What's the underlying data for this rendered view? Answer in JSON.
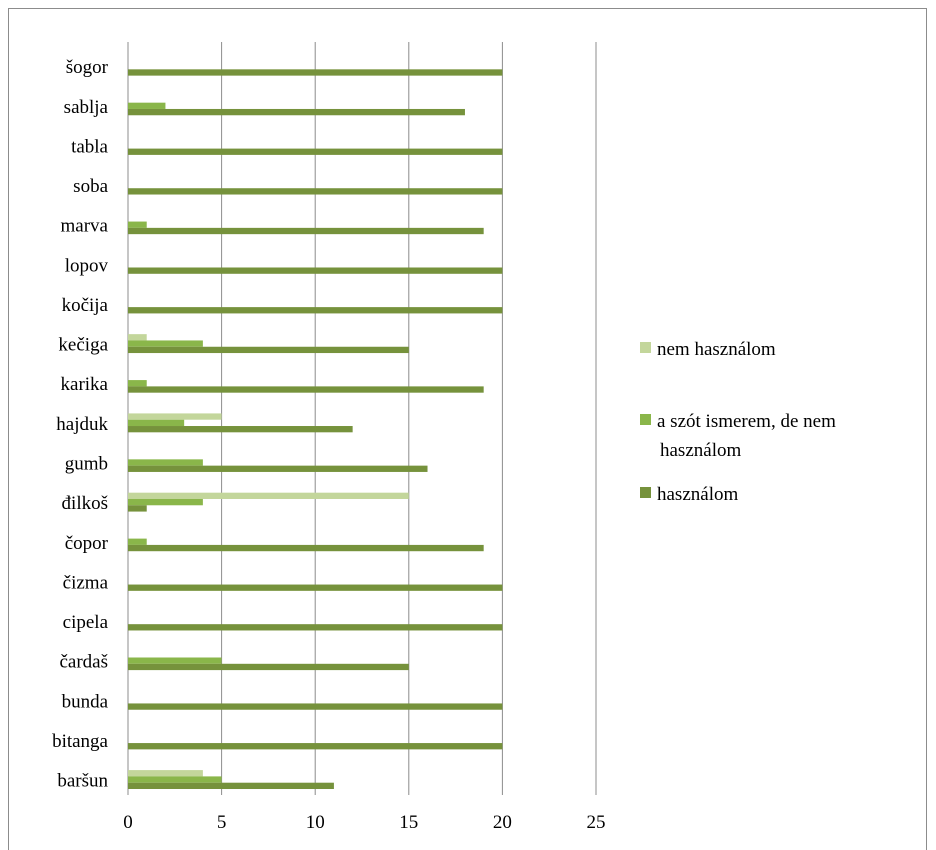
{
  "chart_data": {
    "type": "bar",
    "orientation": "horizontal",
    "grid": true,
    "legend_position": "right",
    "categories": [
      "baršun",
      "bitanga",
      "bunda",
      "čardaš",
      "cipela",
      "čizma",
      "čopor",
      "đilkoš",
      "gumb",
      "hajduk",
      "karika",
      "kečiga",
      "kočija",
      "lopov",
      "marva",
      "soba",
      "tabla",
      "sablja",
      "šogor"
    ],
    "series": [
      {
        "name": "nem használom",
        "color": "#c3d69b",
        "values": [
          4,
          0,
          0,
          0,
          0,
          0,
          0,
          15,
          0,
          5,
          0,
          1,
          0,
          0,
          0,
          0,
          0,
          0,
          0
        ]
      },
      {
        "name": "a szót ismerem, de nem használom",
        "color": "#8ab64a",
        "values": [
          5,
          0,
          0,
          5,
          0,
          0,
          1,
          4,
          4,
          3,
          1,
          4,
          0,
          0,
          1,
          0,
          0,
          2,
          0
        ]
      },
      {
        "name": "használom",
        "color": "#76923c",
        "values": [
          11,
          20,
          20,
          15,
          20,
          20,
          19,
          1,
          16,
          12,
          19,
          15,
          20,
          20,
          19,
          20,
          20,
          18,
          20
        ]
      }
    ],
    "xlim": [
      0,
      25
    ],
    "xticks": [
      0,
      5,
      10,
      15,
      20,
      25
    ],
    "legend": [
      "nem használom",
      "a szót ismerem, de nem használom",
      "használom"
    ]
  }
}
